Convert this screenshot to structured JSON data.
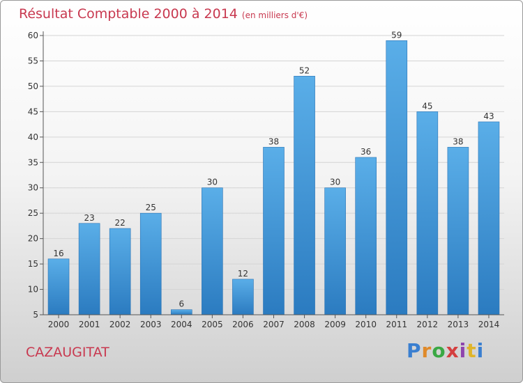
{
  "title": "Résultat Comptable 2000 à 2014",
  "unit": "(en milliers d'€)",
  "commune": "CAZAUGITAT",
  "logo": {
    "letters": [
      "P",
      "r",
      "o",
      "x",
      "i",
      "t",
      "i"
    ],
    "colors": [
      "#3a7fd0",
      "#e08a2a",
      "#3aa844",
      "#d43f3f",
      "#8e44ad",
      "#e0b52a",
      "#3a7fd0"
    ]
  },
  "colors": {
    "bar_top": "#5aaee8",
    "bar_bottom": "#2b7bc0",
    "title": "#c8384f"
  },
  "chart_data": {
    "type": "bar",
    "title": "Résultat Comptable 2000 à 2014",
    "categories": [
      "2000",
      "2001",
      "2002",
      "2003",
      "2004",
      "2005",
      "2006",
      "2007",
      "2008",
      "2009",
      "2010",
      "2011",
      "2012",
      "2013",
      "2014"
    ],
    "values": [
      16,
      23,
      22,
      25,
      6,
      30,
      12,
      38,
      52,
      30,
      36,
      59,
      45,
      38,
      43
    ],
    "ylim": [
      5,
      60
    ],
    "yticks": [
      5,
      10,
      15,
      20,
      25,
      30,
      35,
      40,
      45,
      50,
      55,
      60
    ],
    "grid": true,
    "legend": "none"
  }
}
